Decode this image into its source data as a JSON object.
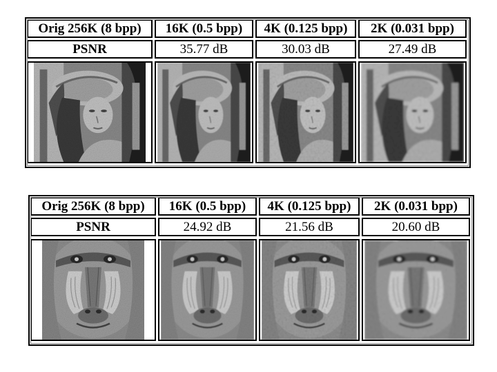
{
  "table1": {
    "headers": [
      "Orig 256K (8 bpp)",
      "16K (0.5 bpp)",
      "4K (0.125 bpp)",
      "2K (0.031 bpp)"
    ],
    "psnr_label": "PSNR",
    "psnr_values": [
      "35.77 dB",
      "30.03 dB",
      "27.49 dB"
    ],
    "images": [
      "lena-original",
      "lena-16k",
      "lena-4k",
      "lena-2k"
    ]
  },
  "table2": {
    "headers": [
      "Orig 256K (8 bpp)",
      "16K (0.5 bpp)",
      "4K (0.125 bpp)",
      "2K (0.031 bpp)"
    ],
    "psnr_label": "PSNR",
    "psnr_values": [
      "24.92 dB",
      "21.56 dB",
      "20.60 dB"
    ],
    "images": [
      "baboon-original",
      "baboon-16k",
      "baboon-4k",
      "baboon-2k"
    ]
  }
}
